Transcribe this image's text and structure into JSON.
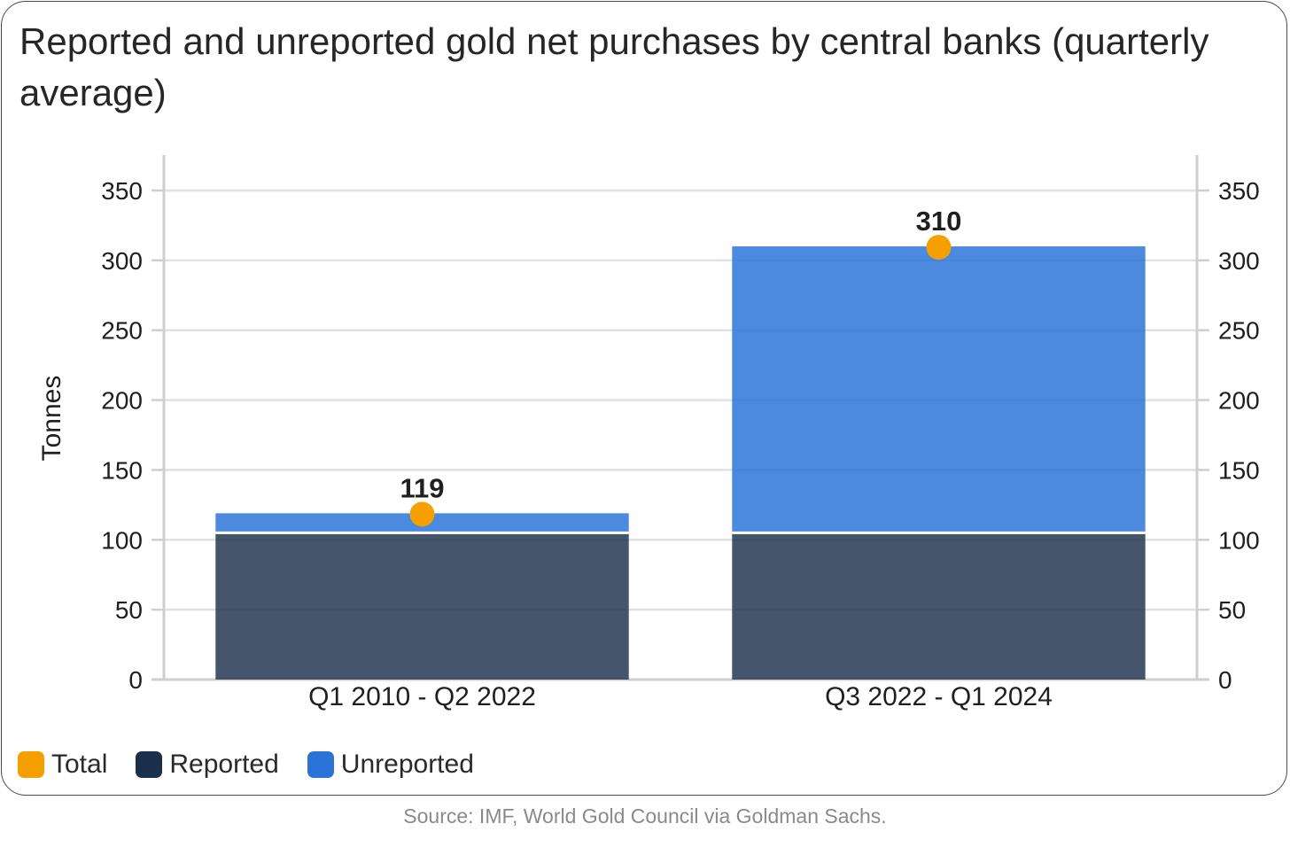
{
  "title": "Reported and unreported gold net purchases by central banks (quarterly average)",
  "source": "Source: IMF, World Gold Council via Goldman Sachs.",
  "colors": {
    "reported": "#1c2f4a",
    "unreported": "#2a73d9",
    "total": "#f5a000",
    "grid": "#e1e1e1",
    "axis": "#cfcfcf"
  },
  "legend": [
    {
      "label": "Total",
      "color": "#f5a000"
    },
    {
      "label": "Reported",
      "color": "#1c2f4a"
    },
    {
      "label": "Unreported",
      "color": "#2a73d9"
    }
  ],
  "chart_data": {
    "type": "bar",
    "stacked": true,
    "title": "Reported and unreported gold net purchases by central banks (quarterly average)",
    "ylabel": "Tonnes",
    "xlabel": "",
    "ylim": [
      0,
      350
    ],
    "yticks": [
      0,
      50,
      100,
      150,
      200,
      250,
      300,
      350
    ],
    "categories": [
      "Q1 2010 - Q2 2022",
      "Q3 2022 - Q1 2024"
    ],
    "series": [
      {
        "name": "Reported",
        "values": [
          105,
          105
        ]
      },
      {
        "name": "Unreported",
        "values": [
          14,
          205
        ]
      }
    ],
    "total": {
      "name": "Total",
      "values": [
        119,
        310
      ],
      "labels": [
        "119",
        "310"
      ]
    },
    "grid": true,
    "legend_position": "bottom-left",
    "secondary_y_axis": true
  }
}
